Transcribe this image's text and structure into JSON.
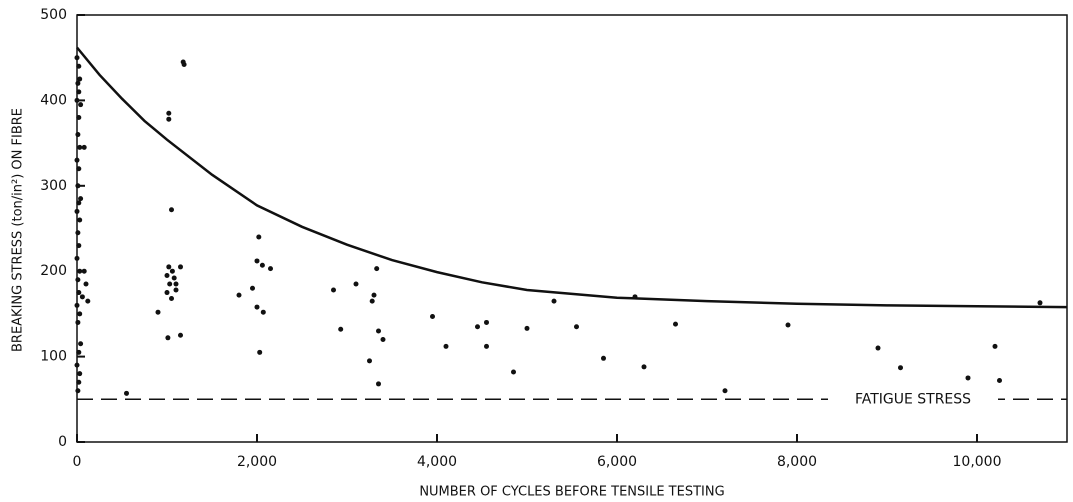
{
  "chart_data": {
    "type": "scatter",
    "xlabel": "NUMBER OF CYCLES BEFORE TENSILE TESTING",
    "ylabel": "BREAKING STRESS (ton/in²) ON FIBRE",
    "xlim": [
      0,
      11000
    ],
    "ylim": [
      0,
      500
    ],
    "xticks": [
      0,
      {
        "value": 2000,
        "label": "2,000"
      },
      {
        "value": 4000,
        "label": "4,000"
      },
      {
        "value": 6000,
        "label": "6,000"
      },
      {
        "value": 8000,
        "label": "8,000"
      },
      {
        "value": 10000,
        "label": "10,000"
      }
    ],
    "yticks": [
      0,
      100,
      200,
      300,
      400,
      500
    ],
    "color": "#111111",
    "points": {
      "x": [
        0,
        20,
        30,
        10,
        20,
        0,
        40,
        20,
        10,
        30,
        80,
        0,
        20,
        10,
        40,
        20,
        0,
        30,
        10,
        20,
        0,
        30,
        80,
        10,
        100,
        20,
        60,
        120,
        0,
        30,
        10,
        40,
        20,
        0,
        30,
        20,
        10,
        550,
        900,
        1020,
        1020,
        1050,
        1020,
        1060,
        1000,
        1080,
        1030,
        1100,
        1000,
        1100,
        1050,
        1150,
        1180,
        1190,
        1010,
        1150,
        1800,
        1950,
        2000,
        2020,
        2000,
        2060,
        2150,
        2070,
        2030,
        2850,
        2930,
        3100,
        3250,
        3280,
        3300,
        3330,
        3350,
        3400,
        3350,
        3950,
        4100,
        4450,
        4550,
        4550,
        4850,
        5000,
        5300,
        5550,
        5850,
        6200,
        6300,
        6650,
        7200,
        7900,
        8900,
        9150,
        9900,
        10200,
        10250,
        10700
      ],
      "values": [
        450,
        440,
        425,
        420,
        410,
        400,
        395,
        380,
        360,
        345,
        345,
        330,
        320,
        300,
        285,
        280,
        270,
        260,
        245,
        230,
        215,
        200,
        200,
        190,
        185,
        175,
        170,
        165,
        160,
        150,
        140,
        115,
        105,
        90,
        80,
        70,
        60,
        57,
        152,
        385,
        378,
        272,
        205,
        200,
        195,
        192,
        185,
        185,
        175,
        178,
        168,
        205,
        445,
        442,
        122,
        125,
        172,
        180,
        158,
        240,
        212,
        207,
        203,
        152,
        105,
        178,
        132,
        185,
        95,
        165,
        172,
        203,
        130,
        120,
        68,
        147,
        112,
        135,
        140,
        112,
        82,
        133,
        165,
        135,
        98,
        170,
        88,
        138,
        60,
        137,
        110,
        87,
        75,
        112,
        72,
        163
      ]
    },
    "curve": {
      "x": [
        0,
        250,
        500,
        750,
        1000,
        1500,
        2000,
        2500,
        3000,
        3500,
        4000,
        4500,
        5000,
        6000,
        7000,
        8000,
        9000,
        10000,
        11000
      ],
      "values": [
        462,
        430,
        402,
        376,
        354,
        313,
        277,
        252,
        231,
        213,
        199,
        187,
        178,
        169,
        165,
        162,
        160,
        159,
        158
      ]
    },
    "fatigue_stress": {
      "value": 50,
      "label": "FATIGUE STRESS"
    }
  }
}
